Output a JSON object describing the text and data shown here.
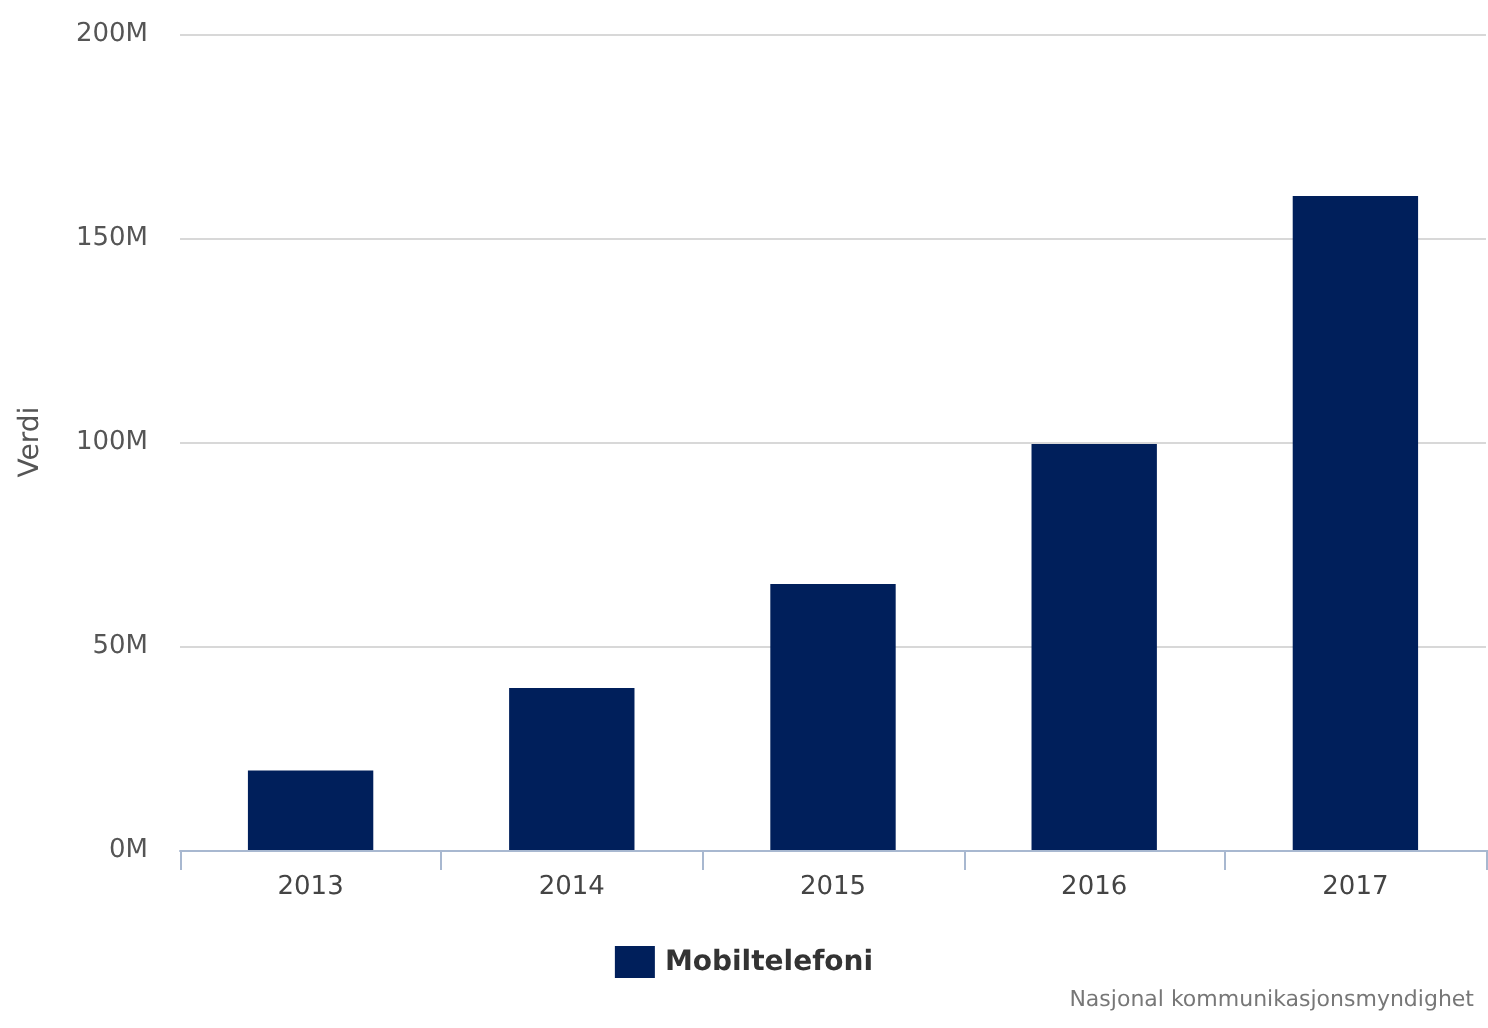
{
  "chart_data": {
    "type": "bar",
    "ylabel": "Verdi",
    "categories": [
      "2013",
      "2014",
      "2015",
      "2016",
      "2017"
    ],
    "series": [
      {
        "name": "Mobiltelefoni",
        "color": "#001f5b",
        "values": [
          19.5,
          39.7,
          65.2,
          99.5,
          160.3
        ]
      }
    ],
    "ylim": [
      0,
      200
    ],
    "yticks": [
      {
        "value": 0,
        "label": "0M"
      },
      {
        "value": 50,
        "label": "50M"
      },
      {
        "value": 100,
        "label": "100M"
      },
      {
        "value": 150,
        "label": "150M"
      },
      {
        "value": 200,
        "label": "200M"
      }
    ],
    "grid": "y",
    "legend": "bottom",
    "annotations": [
      "Nasjonal kommunikasjonsmyndighet"
    ]
  }
}
